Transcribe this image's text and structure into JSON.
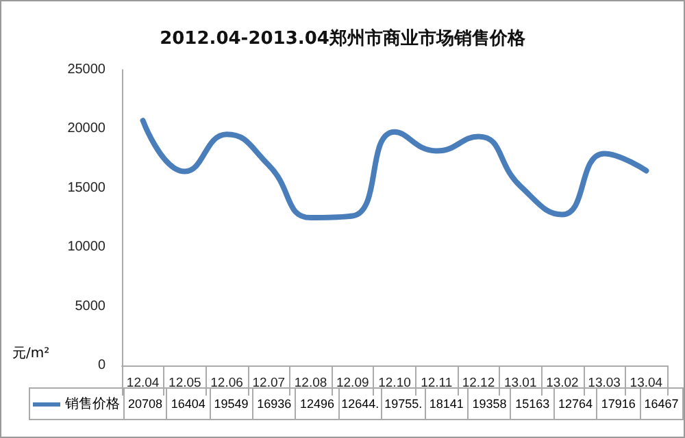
{
  "chart_data": {
    "type": "line",
    "title": "2012.04-2013.04郑州市商业市场销售价格",
    "ylabel": "元/m²",
    "categories": [
      "12.04",
      "12.05",
      "12.06",
      "12.07",
      "12.08",
      "12.09",
      "12.10",
      "12.11",
      "12.12",
      "13.01",
      "13.02",
      "13.03",
      "13.04"
    ],
    "series": [
      {
        "name": "销售价格",
        "color": "#4a7ebb",
        "values": [
          20708,
          16404,
          19549,
          16936,
          12496,
          12644,
          19755,
          18141,
          19358,
          15163,
          12764,
          17916,
          16467
        ],
        "value_labels": [
          "20708",
          "16404",
          "19549",
          "16936",
          "12496",
          "12644.",
          "19755.",
          "18141",
          "19358",
          "15163",
          "12764",
          "17916",
          "16467"
        ]
      }
    ],
    "ylim": [
      0,
      25000
    ],
    "yticks": [
      0,
      5000,
      10000,
      15000,
      20000,
      25000
    ],
    "grid": false,
    "legend": "bottom",
    "marker": "none",
    "line_style": "solid"
  }
}
